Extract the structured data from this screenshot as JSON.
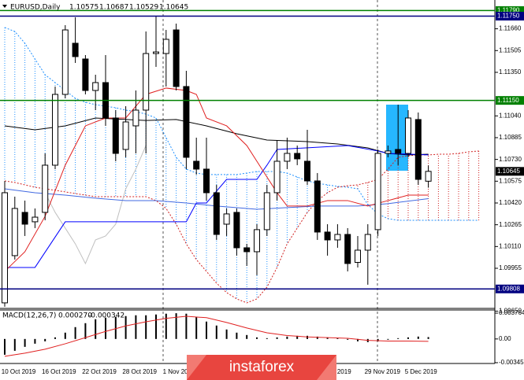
{
  "chart_data": [
    {
      "type": "candlestick",
      "title": "EURUSD,Daily",
      "categories": [
        null,
        "10 Oct 2019",
        null,
        null,
        null,
        "16 Oct 2019",
        null,
        null,
        null,
        "22 Oct 2019",
        null,
        null,
        null,
        "28 Oct 2019",
        null,
        null,
        null,
        "1 Nov 2019",
        null,
        null,
        null,
        null,
        null,
        null,
        null,
        null,
        null,
        null,
        null,
        null,
        null,
        null,
        null,
        "Nov 2019",
        null,
        null,
        null,
        "29 Nov 2019",
        null,
        null,
        null,
        "5 Dec 2019",
        null
      ],
      "open": [
        1.09709,
        1.10045,
        1.10353,
        1.10286,
        1.10353,
        1.10689,
        1.11193,
        1.11557,
        1.11445,
        1.11221,
        1.11277,
        1.11025,
        1.10801,
        1.10969,
        1.11081,
        1.11484,
        1.11484,
        1.11652,
        1.11249,
        1.10717,
        1.10661,
        1.10493,
        1.10269,
        1.10353,
        1.10101,
        1.10073,
        1.1023,
        1.10493,
        1.10717,
        1.10773,
        1.10717,
        1.10577,
        1.10213,
        1.10157,
        1.10196,
        1.09997,
        1.10084,
        1.1023,
        1.10773,
        1.10801,
        1.10773,
        1.11014,
        1.10575
      ],
      "high": [
        1.10577,
        1.10465,
        1.10437,
        1.10381,
        1.10773,
        1.11249,
        1.11686,
        1.11742,
        1.11473,
        1.11333,
        1.11473,
        1.11081,
        1.11109,
        1.11221,
        1.11641,
        1.11753,
        1.11652,
        1.11697,
        1.11361,
        1.10885,
        1.10885,
        1.10549,
        1.10381,
        1.10381,
        1.10129,
        1.10269,
        1.10549,
        1.10868,
        1.10885,
        1.10829,
        1.10941,
        1.10633,
        1.10269,
        1.10269,
        1.10241,
        1.10185,
        1.10269,
        1.10801,
        1.10829,
        1.1112,
        1.11081,
        1.11064,
        1.10687
      ],
      "low": [
        1.09681,
        1.10017,
        1.10185,
        1.10241,
        1.10297,
        1.10661,
        1.11165,
        1.11417,
        1.11193,
        1.11081,
        1.10969,
        1.10717,
        1.10745,
        1.10773,
        1.10773,
        1.11389,
        1.11249,
        1.11221,
        1.10661,
        1.10622,
        1.10437,
        1.10157,
        1.10185,
        1.10045,
        1.09972,
        1.09905,
        1.10185,
        1.10437,
        1.10661,
        1.10689,
        1.10549,
        1.10157,
        1.10045,
        1.10101,
        1.09933,
        1.09961,
        1.09838,
        1.10185,
        1.10745,
        1.10689,
        1.10745,
        1.10549,
        1.10529
      ],
      "close": [
        1.10493,
        1.10381,
        1.10269,
        1.10319,
        1.10689,
        1.11193,
        1.11652,
        1.11462,
        1.11221,
        1.11277,
        1.11025,
        1.10773,
        1.10997,
        1.11081,
        1.11484,
        1.11495,
        1.11585,
        1.11249,
        1.10745,
        1.10661,
        1.10493,
        1.10196,
        1.10342,
        1.10101,
        1.10073,
        1.1023,
        1.10493,
        1.10717,
        1.10773,
        1.10734,
        1.10577,
        1.10213,
        1.10157,
        1.10196,
        1.09989,
        1.10084,
        1.10196,
        1.10773,
        1.1079,
        1.10773,
        1.11025,
        1.10588,
        1.10645
      ],
      "up_color": "#ffffff",
      "down_color": "#000000",
      "ylim": [
        1.09675,
        1.11865
      ],
      "yticks": [
        {
          "value": 1.1166,
          "label": "1.11660"
        },
        1.11505,
        {
          "value": 1.1135,
          "label": "1.11350"
        },
        {
          "value": 1.1104,
          "label": "1.11040"
        },
        1.10885,
        {
          "value": 1.1073,
          "label": "1.10730"
        },
        1.10575,
        {
          "value": 1.1042,
          "label": "1.10420"
        },
        1.10265,
        {
          "value": 1.1011,
          "label": "1.10110"
        },
        1.09955,
        {
          "value": 1.0965,
          "label": "1.09650"
        }
      ],
      "levels": [
        {
          "value": 1.1179,
          "label": "1.11790",
          "color": "#008000"
        },
        {
          "value": 1.1175,
          "label": "1.11750",
          "color": "#000080"
        },
        {
          "value": 1.1115,
          "label": "1.11150",
          "color": "#008000"
        },
        {
          "value": 1.09808,
          "label": "1.09808",
          "color": "#000080"
        }
      ],
      "cloud": {
        "up_color": "#1e90ff",
        "down_color": "#d02020",
        "x": [
          0,
          1,
          2,
          3,
          4,
          5,
          6,
          7,
          8,
          9,
          10,
          11,
          12,
          13,
          14,
          15,
          16,
          17,
          18,
          19,
          20,
          21,
          22,
          23,
          24,
          25,
          26,
          27,
          28,
          29,
          30,
          31,
          32,
          33,
          34,
          35,
          36,
          37,
          38,
          39,
          40,
          41,
          42,
          43,
          44,
          45,
          46,
          47
        ],
        "span_a": [
          1.11669,
          1.11641,
          1.11557,
          1.11445,
          1.11333,
          1.11277,
          1.11221,
          1.11165,
          1.11137,
          1.1112,
          1.11109,
          1.11098,
          1.11081,
          1.1107,
          1.11053,
          1.11025,
          1.10885,
          1.10745,
          1.10661,
          1.10633,
          1.10622,
          1.10622,
          1.10622,
          1.10622,
          1.10633,
          1.10644,
          1.10644,
          1.10644,
          1.10633,
          1.10605,
          1.10577,
          1.1056,
          1.10549,
          1.10538,
          1.10532,
          1.10521,
          1.10409,
          1.10342,
          1.10308,
          1.10297,
          1.10297,
          1.10297,
          1.10297,
          1.10297,
          1.10297,
          1.10297,
          1.10297,
          1.10297
        ],
        "span_b": [
          1.10577,
          1.10566,
          1.10549,
          1.10532,
          1.10521,
          1.1051,
          1.10499,
          1.10487,
          1.10476,
          1.10465,
          1.10465,
          1.10465,
          1.10465,
          1.10465,
          1.10465,
          1.10437,
          1.10381,
          1.10269,
          1.10129,
          1.10017,
          1.09933,
          1.09849,
          1.09782,
          1.09737,
          1.09709,
          1.09737,
          1.09821,
          1.09961,
          1.10129,
          1.10241,
          1.10353,
          1.10437,
          1.10493,
          1.10532,
          1.10543,
          1.10549,
          1.10566,
          1.10588,
          1.10661,
          1.10745,
          1.10756,
          1.10762,
          1.10762,
          1.10767,
          1.10767,
          1.10773,
          1.10784,
          1.1079
        ]
      },
      "lines": [
        {
          "color": "#c0c0c0",
          "x": [
            4,
            5,
            6,
            7,
            8,
            9,
            10,
            11,
            12,
            13,
            14
          ],
          "values": [
            1.10493,
            1.10353,
            1.10241,
            1.10129,
            1.09989,
            1.10157,
            1.10185,
            1.10269,
            1.10521,
            1.10661,
            1.10829
          ]
        },
        {
          "color": "#4169e1",
          "x": [
            0,
            3,
            6,
            9,
            12,
            15,
            18,
            21,
            25,
            28,
            31,
            35,
            38,
            42
          ],
          "values": [
            1.10521,
            1.10493,
            1.10476,
            1.10454,
            1.10437,
            1.10437,
            1.1042,
            1.10398,
            1.10375,
            1.10387,
            1.10398,
            1.10398,
            1.10415,
            1.10451
          ]
        },
        {
          "color": "#000000",
          "x": [
            0,
            3,
            6,
            9,
            14,
            17,
            20,
            23,
            26,
            30,
            33,
            36,
            38,
            40,
            42
          ],
          "values": [
            1.10969,
            1.10941,
            1.10969,
            1.11025,
            1.11007,
            1.11014,
            1.10969,
            1.10913,
            1.10868,
            1.10857,
            1.1084,
            1.10812,
            1.10773,
            1.10762,
            1.10767
          ]
        },
        {
          "color": "#0000ff",
          "x": [
            0,
            3,
            6,
            18,
            19,
            20,
            22,
            25,
            26,
            27,
            34,
            37,
            38,
            42
          ],
          "values": [
            1.09961,
            1.09961,
            1.10286,
            1.10286,
            1.1042,
            1.1042,
            1.10588,
            1.10588,
            1.10689,
            1.10801,
            1.10829,
            1.1079,
            1.10773,
            1.10762
          ]
        },
        {
          "color": "#e02020",
          "x": [
            0,
            2,
            4,
            6,
            8,
            10,
            12,
            14,
            16,
            18,
            19,
            20,
            22,
            24,
            25,
            26,
            27,
            28,
            30,
            32,
            34,
            36,
            38,
            40,
            42
          ],
          "values": [
            1.09933,
            1.10073,
            1.10325,
            1.10689,
            1.10969,
            1.11025,
            1.11025,
            1.11193,
            1.11238,
            1.11221,
            1.11193,
            1.11025,
            1.10969,
            1.10829,
            1.10717,
            1.10605,
            1.10493,
            1.10398,
            1.10398,
            1.10437,
            1.10437,
            1.10398,
            1.10437,
            1.10476,
            1.10476
          ]
        }
      ]
    },
    {
      "type": "macd",
      "title": "MACD(12,26,7)",
      "header_values": [
        {
          "value": 0.00027,
          "label": "0.000270"
        },
        -0.000342
      ],
      "histogram": {
        "color": "#000000",
        "values": [
          -0.0023,
          -0.001725,
          -0.00115,
          -0.00069,
          -0.000345,
          0.00023,
          0.00092,
          0.001725,
          0.0023,
          0.002875,
          0.003105,
          0.00322,
          0.003335,
          0.00345,
          0.00345,
          0.003565,
          0.00368,
          0.00375,
          0.00368,
          0.00322,
          0.00253,
          0.001955,
          0.00138,
          0.00092,
          0.000575,
          0.00023,
          0.000115,
          0.00023,
          0.000345,
          0.00046,
          0.00046,
          0.000345,
          0.00023,
          0.000115,
          -0.000115,
          -0.000345,
          -0.00046,
          -0.000345,
          -0.000115,
          0.000115,
          0.00023,
          0.000345,
          0.00027
        ]
      },
      "signal": {
        "color": "#e02020",
        "x": [
          0,
          2,
          4,
          6,
          8,
          10,
          12,
          14,
          16,
          18,
          20,
          22,
          24,
          26,
          28,
          30,
          32,
          34,
          36,
          38,
          40,
          42
        ],
        "values": [
          -0.00253,
          -0.00207,
          -0.0015,
          -0.0007,
          0.0002,
          0.0011,
          0.0019,
          0.0025,
          0.003,
          0.0033,
          0.0031,
          0.0024,
          0.0016,
          0.0009,
          0.0005,
          0.0003,
          0.0002,
          0.0001,
          -0.0002,
          -0.0003,
          -0.0003,
          -0.000342
        ]
      },
      "ylim": [
        -0.003459,
        0.003764
      ],
      "yticks": [
        0.003764,
        {
          "value": 0,
          "label": "0.00"
        },
        -0.003459
      ]
    }
  ],
  "watermark": "instaforex"
}
